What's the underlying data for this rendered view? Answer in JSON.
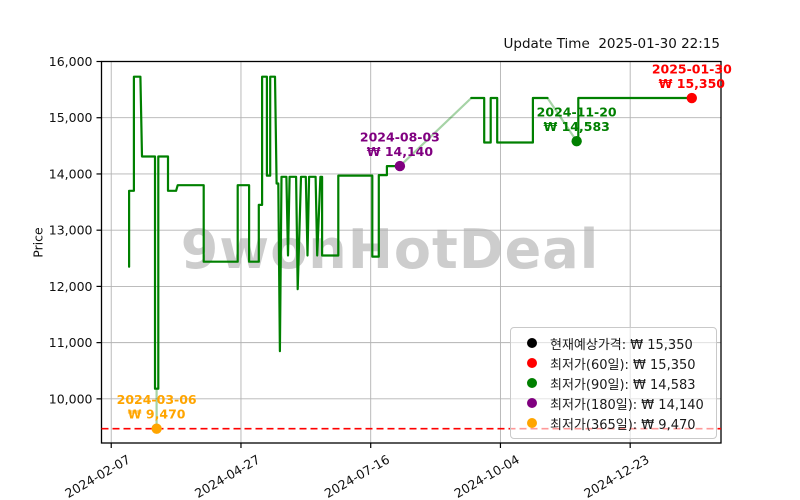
{
  "header": {
    "update_time": "Update Time  2025-01-30 22:15"
  },
  "watermark": "9wonHotDeal",
  "chart_data": {
    "type": "line",
    "title": "Update Time  2025-01-30 22:15",
    "xlabel": "",
    "ylabel": "Price",
    "grid": true,
    "legend_position": "lower right",
    "xlim": [
      "2024-02-01",
      "2025-02-17"
    ],
    "ylim": [
      9215,
      16000
    ],
    "y_ticks": [
      10000,
      11000,
      12000,
      13000,
      14000,
      15000,
      16000
    ],
    "x_ticks": [
      "2024-02-07",
      "2024-04-27",
      "2024-07-16",
      "2024-10-04",
      "2024-12-23"
    ],
    "line": {
      "name": "price-history",
      "color": "#008000",
      "gap_opacity": 0.35,
      "segments": [
        {
          "style": "gap",
          "points": [
            [
              "2024-03-06",
              10180
            ],
            [
              "2024-03-06",
              9470
            ]
          ]
        },
        {
          "style": "gap",
          "points": [
            [
              "2024-08-03",
              14140
            ],
            [
              "2024-09-16",
              15350
            ]
          ]
        },
        {
          "style": "gap",
          "points": [
            [
              "2024-11-02",
              15350
            ],
            [
              "2024-11-20",
              14583
            ]
          ]
        },
        {
          "style": "solid",
          "points": [
            [
              "2024-02-18",
              12350
            ],
            [
              "2024-02-18",
              13700
            ],
            [
              "2024-02-21",
              13700
            ],
            [
              "2024-02-21",
              15730
            ],
            [
              "2024-02-25",
              15730
            ],
            [
              "2024-02-26",
              14310
            ],
            [
              "2024-03-05",
              14310
            ],
            [
              "2024-03-05",
              10180
            ],
            [
              "2024-03-07",
              10180
            ],
            [
              "2024-03-07",
              14310
            ],
            [
              "2024-03-13",
              14310
            ],
            [
              "2024-03-13",
              13700
            ],
            [
              "2024-03-18",
              13700
            ],
            [
              "2024-03-19",
              13800
            ],
            [
              "2024-04-04",
              13800
            ],
            [
              "2024-04-04",
              12440
            ],
            [
              "2024-04-25",
              12440
            ],
            [
              "2024-04-25",
              13800
            ],
            [
              "2024-05-02",
              13800
            ],
            [
              "2024-05-02",
              12440
            ],
            [
              "2024-05-08",
              12440
            ],
            [
              "2024-05-08",
              13450
            ],
            [
              "2024-05-10",
              13450
            ],
            [
              "2024-05-10",
              15730
            ],
            [
              "2024-05-13",
              15730
            ],
            [
              "2024-05-13",
              13970
            ],
            [
              "2024-05-15",
              13970
            ],
            [
              "2024-05-15",
              15730
            ],
            [
              "2024-05-18",
              15730
            ],
            [
              "2024-05-19",
              13830
            ],
            [
              "2024-05-20",
              13830
            ],
            [
              "2024-05-21",
              10850
            ],
            [
              "2024-05-22",
              13950
            ],
            [
              "2024-05-25",
              13950
            ],
            [
              "2024-05-26",
              12550
            ],
            [
              "2024-05-27",
              13950
            ],
            [
              "2024-05-31",
              13950
            ],
            [
              "2024-06-01",
              11950
            ],
            [
              "2024-06-03",
              13950
            ],
            [
              "2024-06-06",
              13950
            ],
            [
              "2024-06-07",
              12550
            ],
            [
              "2024-06-08",
              13950
            ],
            [
              "2024-06-12",
              13950
            ],
            [
              "2024-06-13",
              12550
            ],
            [
              "2024-06-15",
              13950
            ],
            [
              "2024-06-16",
              13950
            ],
            [
              "2024-06-16",
              12550
            ],
            [
              "2024-06-26",
              12550
            ],
            [
              "2024-06-26",
              13970
            ],
            [
              "2024-07-17",
              13970
            ],
            [
              "2024-07-17",
              12530
            ],
            [
              "2024-07-21",
              12530
            ],
            [
              "2024-07-21",
              13980
            ],
            [
              "2024-07-26",
              13980
            ],
            [
              "2024-07-26",
              14140
            ],
            [
              "2024-08-03",
              14140
            ]
          ]
        },
        {
          "style": "solid",
          "points": [
            [
              "2024-09-16",
              15350
            ],
            [
              "2024-09-24",
              15350
            ],
            [
              "2024-09-24",
              14560
            ],
            [
              "2024-09-28",
              14560
            ],
            [
              "2024-09-28",
              15350
            ],
            [
              "2024-10-02",
              15350
            ],
            [
              "2024-10-02",
              14560
            ],
            [
              "2024-10-24",
              14560
            ],
            [
              "2024-10-24",
              15350
            ],
            [
              "2024-11-02",
              15350
            ]
          ]
        },
        {
          "style": "solid",
          "points": [
            [
              "2024-11-20",
              14583
            ],
            [
              "2024-11-21",
              14583
            ],
            [
              "2024-11-21",
              15350
            ],
            [
              "2025-01-30",
              15350
            ]
          ]
        }
      ]
    },
    "baseline": {
      "value": 9470,
      "color": "#ff0000",
      "dash": true
    },
    "markers": [
      {
        "date": "2024-03-06",
        "value": 9470,
        "color": "#ffa500",
        "label_date": "2024-03-06",
        "label_price": "₩ 9,470"
      },
      {
        "date": "2024-08-03",
        "value": 14140,
        "color": "#800080",
        "label_date": "2024-08-03",
        "label_price": "₩ 14,140"
      },
      {
        "date": "2024-11-20",
        "value": 14583,
        "color": "#008000",
        "label_date": "2024-11-20",
        "label_price": "₩ 14,583"
      },
      {
        "date": "2025-01-30",
        "value": 15350,
        "color": "#ff0000",
        "label_date": "2025-01-30",
        "label_price": "₩ 15,350"
      }
    ],
    "legend": [
      {
        "color": "#000000",
        "label": "현재예상가격: ₩ 15,350"
      },
      {
        "color": "#ff0000",
        "label": "최저가(60일): ₩ 15,350"
      },
      {
        "color": "#008000",
        "label": "최저가(90일): ₩ 14,583"
      },
      {
        "color": "#800080",
        "label": "최저가(180일): ₩ 14,140"
      },
      {
        "color": "#ffa500",
        "label": "최저가(365일): ₩ 9,470"
      }
    ]
  }
}
